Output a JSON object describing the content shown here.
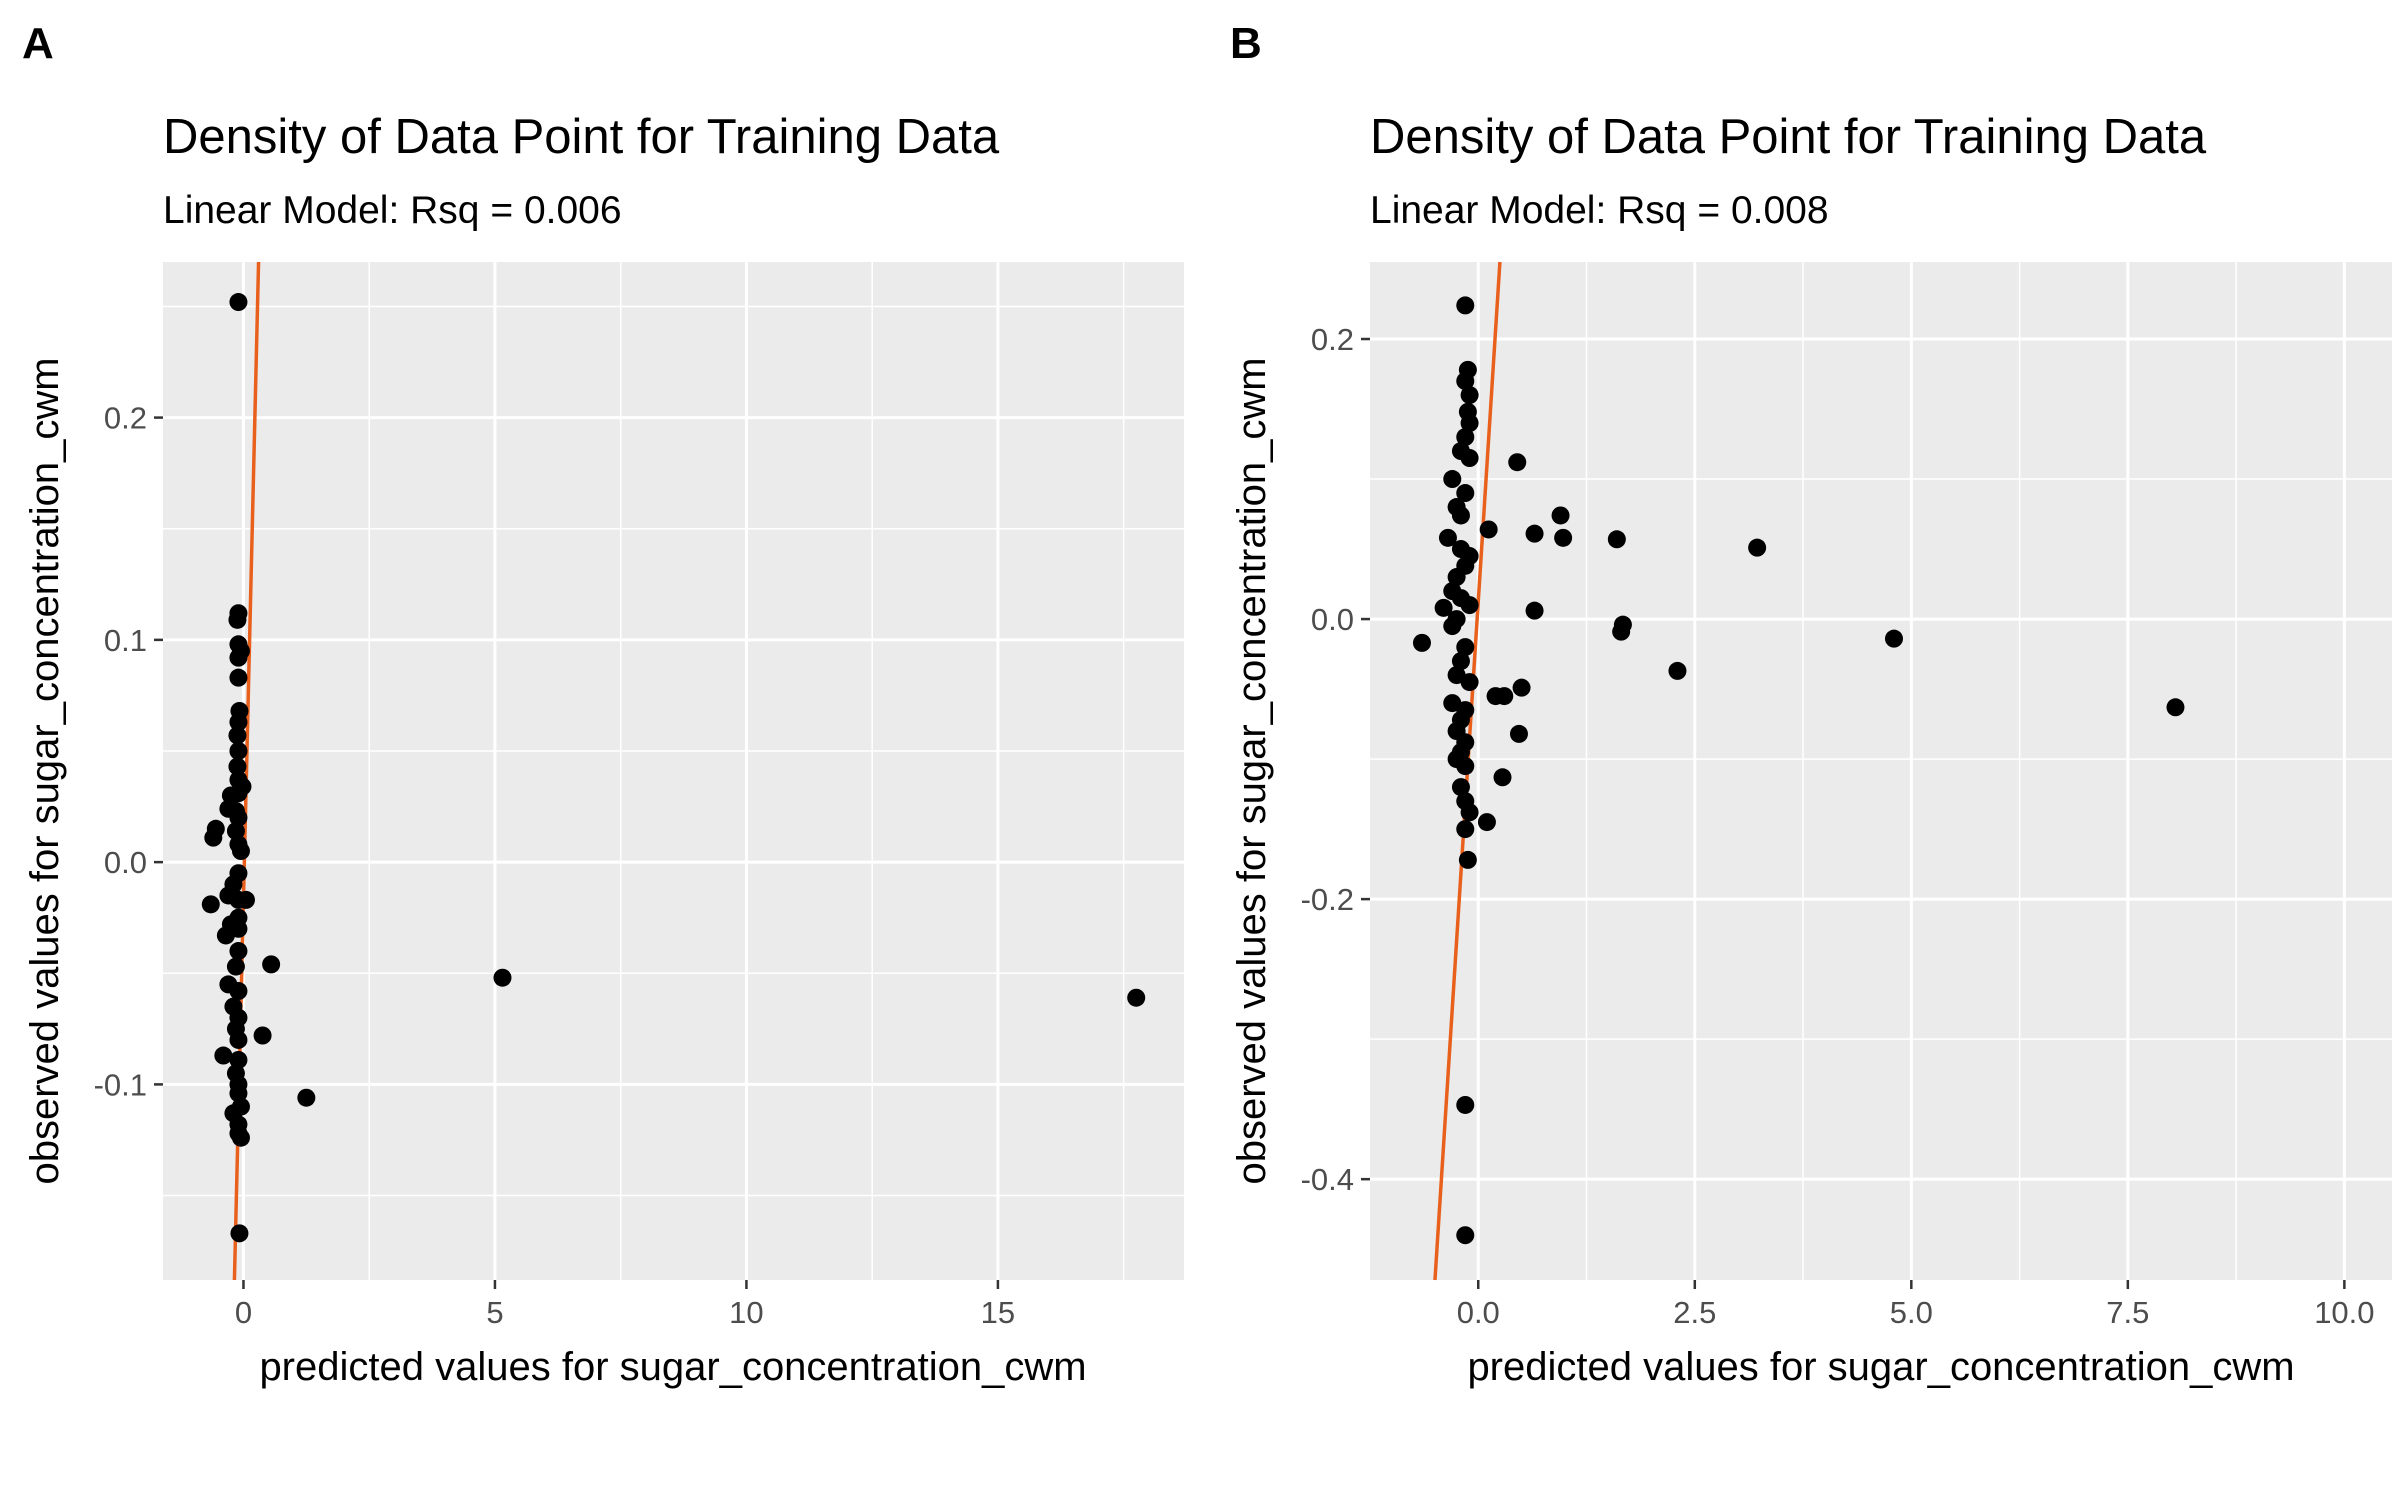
{
  "chart_data": [
    {
      "panel_label": "A",
      "type": "scatter",
      "title": "Density of Data Point for Training Data",
      "subtitle": "Linear Model: Rsq = 0.006",
      "xlabel": "predicted values for sugar_concentration_cwm",
      "ylabel": "observed values for sugar_concentration_cwm",
      "xlim": [
        -1.6,
        18.7
      ],
      "ylim": [
        -0.188,
        0.27
      ],
      "x_ticks": [
        0,
        5,
        10,
        15
      ],
      "x_tick_labels": [
        "0",
        "5",
        "10",
        "15"
      ],
      "y_ticks": [
        -0.1,
        0.0,
        0.1,
        0.2
      ],
      "y_tick_labels": [
        "-0.1",
        "0.0",
        "0.1",
        "0.2"
      ],
      "grid": true,
      "regression_line": {
        "color": "#e8601c",
        "points": [
          [
            -0.18,
            -0.188
          ],
          [
            0.3,
            0.27
          ]
        ]
      },
      "point_color": "#000000",
      "points": [
        [
          -0.1,
          0.252
        ],
        [
          -0.1,
          0.112
        ],
        [
          -0.12,
          0.109
        ],
        [
          -0.1,
          0.098
        ],
        [
          -0.05,
          0.095
        ],
        [
          -0.1,
          0.092
        ],
        [
          -0.1,
          0.083
        ],
        [
          -0.08,
          0.068
        ],
        [
          -0.1,
          0.063
        ],
        [
          -0.12,
          0.057
        ],
        [
          -0.1,
          0.05
        ],
        [
          -0.12,
          0.043
        ],
        [
          -0.1,
          0.037
        ],
        [
          -0.1,
          0.031
        ],
        [
          -0.02,
          0.034
        ],
        [
          -0.25,
          0.03
        ],
        [
          -0.3,
          0.024
        ],
        [
          -0.1,
          0.02
        ],
        [
          -0.15,
          0.023
        ],
        [
          -0.55,
          0.015
        ],
        [
          -0.6,
          0.011
        ],
        [
          -0.15,
          0.014
        ],
        [
          -0.1,
          0.008
        ],
        [
          -0.05,
          0.005
        ],
        [
          -0.1,
          -0.005
        ],
        [
          -0.2,
          -0.01
        ],
        [
          -0.3,
          -0.015
        ],
        [
          -0.1,
          -0.017
        ],
        [
          0.05,
          -0.017
        ],
        [
          -0.65,
          -0.019
        ],
        [
          -0.1,
          -0.025
        ],
        [
          -0.1,
          -0.03
        ],
        [
          -0.25,
          -0.028
        ],
        [
          -0.35,
          -0.033
        ],
        [
          -0.1,
          -0.04
        ],
        [
          -0.15,
          -0.047
        ],
        [
          -0.3,
          -0.055
        ],
        [
          -0.1,
          -0.058
        ],
        [
          -0.2,
          -0.065
        ],
        [
          -0.1,
          -0.07
        ],
        [
          -0.15,
          -0.075
        ],
        [
          -0.1,
          -0.08
        ],
        [
          -0.4,
          -0.087
        ],
        [
          -0.1,
          -0.089
        ],
        [
          -0.15,
          -0.095
        ],
        [
          -0.1,
          -0.1
        ],
        [
          -0.1,
          -0.104
        ],
        [
          -0.2,
          -0.113
        ],
        [
          -0.05,
          -0.11
        ],
        [
          -0.1,
          -0.118
        ],
        [
          -0.1,
          -0.122
        ],
        [
          -0.05,
          -0.124
        ],
        [
          0.55,
          -0.046
        ],
        [
          0.38,
          -0.078
        ],
        [
          1.25,
          -0.106
        ],
        [
          5.15,
          -0.052
        ],
        [
          17.75,
          -0.061
        ],
        [
          -0.08,
          -0.167
        ]
      ]
    },
    {
      "panel_label": "B",
      "type": "scatter",
      "title": "Density of Data Point for Training Data",
      "subtitle": "Linear Model: Rsq = 0.008",
      "xlabel": "predicted values for sugar_concentration_cwm",
      "ylabel": "observed values for sugar_concentration_cwm",
      "xlim": [
        -1.25,
        10.55
      ],
      "ylim": [
        -0.472,
        0.255
      ],
      "x_ticks": [
        0.0,
        2.5,
        5.0,
        7.5,
        10.0
      ],
      "x_tick_labels": [
        "0.0",
        "2.5",
        "5.0",
        "7.5",
        "10.0"
      ],
      "y_ticks": [
        -0.4,
        -0.2,
        0.0,
        0.2
      ],
      "y_tick_labels": [
        "-0.4",
        "-0.2",
        "0.0",
        "0.2"
      ],
      "grid": true,
      "regression_line": {
        "color": "#e8601c",
        "points": [
          [
            -0.5,
            -0.472
          ],
          [
            0.25,
            0.255
          ]
        ]
      },
      "point_color": "#000000",
      "points": [
        [
          -0.15,
          0.224
        ],
        [
          -0.12,
          0.178
        ],
        [
          -0.15,
          0.17
        ],
        [
          -0.1,
          0.16
        ],
        [
          -0.12,
          0.148
        ],
        [
          -0.1,
          0.14
        ],
        [
          -0.15,
          0.13
        ],
        [
          -0.2,
          0.12
        ],
        [
          -0.1,
          0.115
        ],
        [
          0.45,
          0.112
        ],
        [
          -0.3,
          0.1
        ],
        [
          -0.15,
          0.09
        ],
        [
          -0.25,
          0.08
        ],
        [
          -0.2,
          0.074
        ],
        [
          0.95,
          0.074
        ],
        [
          0.12,
          0.064
        ],
        [
          -0.35,
          0.058
        ],
        [
          0.65,
          0.061
        ],
        [
          0.98,
          0.058
        ],
        [
          1.6,
          0.057
        ],
        [
          3.22,
          0.051
        ],
        [
          -0.2,
          0.05
        ],
        [
          -0.1,
          0.045
        ],
        [
          -0.15,
          0.038
        ],
        [
          -0.25,
          0.03
        ],
        [
          -0.3,
          0.02
        ],
        [
          -0.2,
          0.015
        ],
        [
          -0.4,
          0.008
        ],
        [
          -0.1,
          0.01
        ],
        [
          0.65,
          0.006
        ],
        [
          -0.25,
          0.0
        ],
        [
          -0.3,
          -0.005
        ],
        [
          1.67,
          -0.004
        ],
        [
          1.65,
          -0.009
        ],
        [
          -0.65,
          -0.017
        ],
        [
          -0.15,
          -0.02
        ],
        [
          4.8,
          -0.014
        ],
        [
          -0.2,
          -0.03
        ],
        [
          2.3,
          -0.037
        ],
        [
          -0.25,
          -0.04
        ],
        [
          -0.1,
          -0.045
        ],
        [
          0.5,
          -0.049
        ],
        [
          0.2,
          -0.055
        ],
        [
          0.3,
          -0.055
        ],
        [
          -0.3,
          -0.06
        ],
        [
          -0.15,
          -0.065
        ],
        [
          -0.2,
          -0.072
        ],
        [
          8.05,
          -0.063
        ],
        [
          -0.25,
          -0.08
        ],
        [
          0.47,
          -0.082
        ],
        [
          -0.15,
          -0.088
        ],
        [
          -0.2,
          -0.095
        ],
        [
          -0.25,
          -0.1
        ],
        [
          -0.15,
          -0.105
        ],
        [
          0.28,
          -0.113
        ],
        [
          -0.2,
          -0.12
        ],
        [
          -0.15,
          -0.13
        ],
        [
          -0.1,
          -0.138
        ],
        [
          0.1,
          -0.145
        ],
        [
          -0.15,
          -0.15
        ],
        [
          -0.12,
          -0.172
        ],
        [
          -0.15,
          -0.347
        ],
        [
          -0.15,
          -0.44
        ]
      ]
    }
  ]
}
